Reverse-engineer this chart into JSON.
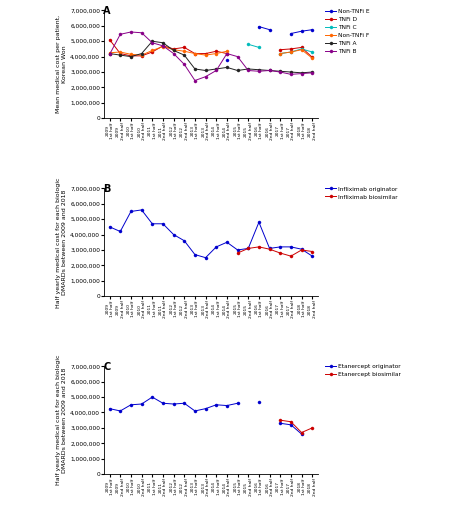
{
  "x_labels": [
    "2009\n1st half",
    "2009\n2nd half",
    "2010\n1st half",
    "2010\n2nd half",
    "2011\n1st half",
    "2011\n2nd half",
    "2012\n1st half",
    "2012\n2nd half",
    "2013\n1st half",
    "2013\n2nd half",
    "2014\n1st half",
    "2014\n2nd half",
    "2015\n1st half",
    "2015\n2nd half",
    "2016\n1st half",
    "2016\n2nd half",
    "2017\n1st half",
    "2017\n2nd half",
    "2018\n1st half",
    "2018\n2nd half"
  ],
  "panel_A": {
    "Non-TNFi E": [
      null,
      null,
      null,
      null,
      null,
      null,
      null,
      null,
      null,
      null,
      null,
      3750000,
      null,
      null,
      5950000,
      5750000,
      null,
      5500000,
      5650000,
      5750000
    ],
    "TNFi D": [
      5100000,
      4200000,
      4050000,
      4050000,
      4300000,
      4700000,
      4500000,
      4600000,
      4200000,
      4200000,
      4350000,
      4200000,
      null,
      null,
      null,
      null,
      4450000,
      4500000,
      4600000,
      3950000
    ],
    "TNFi C": [
      null,
      null,
      null,
      null,
      null,
      null,
      null,
      null,
      null,
      null,
      null,
      null,
      null,
      4800000,
      4600000,
      null,
      4200000,
      4300000,
      4500000,
      4300000
    ],
    "Non-TNFi F": [
      4250000,
      4300000,
      4150000,
      4100000,
      4400000,
      4650000,
      4450000,
      4350000,
      4200000,
      4100000,
      4200000,
      4350000,
      null,
      null,
      null,
      null,
      4200000,
      4300000,
      4450000,
      3900000
    ],
    "TNFi A": [
      4200000,
      4100000,
      4000000,
      4200000,
      5000000,
      4900000,
      4400000,
      4100000,
      3200000,
      3100000,
      3200000,
      3300000,
      3100000,
      3200000,
      3150000,
      3100000,
      3050000,
      3000000,
      2950000,
      3000000
    ],
    "TNFi B": [
      4150000,
      5450000,
      5600000,
      5550000,
      4900000,
      4700000,
      4200000,
      3500000,
      2450000,
      2700000,
      3100000,
      4200000,
      4000000,
      3100000,
      3050000,
      3100000,
      3000000,
      2850000,
      2900000,
      2950000
    ]
  },
  "panel_A_colors": {
    "Non-TNFi E": "#0000CD",
    "TNFi D": "#CC0000",
    "TNFi C": "#00BBBB",
    "Non-TNFi F": "#FF6600",
    "TNFi A": "#222222",
    "TNFi B": "#880088"
  },
  "panel_B": {
    "Infliximab originator": [
      4500000,
      4200000,
      5500000,
      5600000,
      4700000,
      4700000,
      4000000,
      3600000,
      2700000,
      2500000,
      3200000,
      3500000,
      3000000,
      3100000,
      4800000,
      3100000,
      3200000,
      3200000,
      3050000,
      2600000
    ],
    "Infliximab biosimilar": [
      null,
      null,
      null,
      null,
      null,
      null,
      null,
      null,
      null,
      null,
      null,
      null,
      2800000,
      3100000,
      3200000,
      3050000,
      2800000,
      2600000,
      3000000,
      2900000
    ]
  },
  "panel_B_colors": {
    "Infliximab originator": "#0000CD",
    "Infliximab biosimilar": "#CC0000"
  },
  "panel_C": {
    "Etanercept originator": [
      4250000,
      4100000,
      4500000,
      4550000,
      5000000,
      4600000,
      4550000,
      4600000,
      4100000,
      4250000,
      4500000,
      4450000,
      4600000,
      null,
      4700000,
      null,
      3300000,
      3200000,
      2600000,
      null
    ],
    "Etanercept biosimilar": [
      null,
      null,
      null,
      null,
      null,
      null,
      null,
      null,
      null,
      null,
      null,
      null,
      null,
      null,
      null,
      null,
      3500000,
      3400000,
      2700000,
      3000000
    ]
  },
  "panel_C_colors": {
    "Etanercept originator": "#0000CD",
    "Etanercept biosimilar": "#CC0000"
  },
  "ylabel_A": "Mean medical cost per patient,\nKorean Won",
  "ylabel_BC": "Half yearly medical cost for each biologic\nDMARDs between 2009 and 2018",
  "ylim": [
    0,
    7000000
  ],
  "yticks": [
    0,
    1000000,
    2000000,
    3000000,
    4000000,
    5000000,
    6000000,
    7000000
  ],
  "ytick_labels": [
    "0",
    "1,000,000",
    "2,000,000",
    "3,000,000",
    "4,000,000",
    "5,000,000",
    "6,000,000",
    "7,000,000"
  ]
}
